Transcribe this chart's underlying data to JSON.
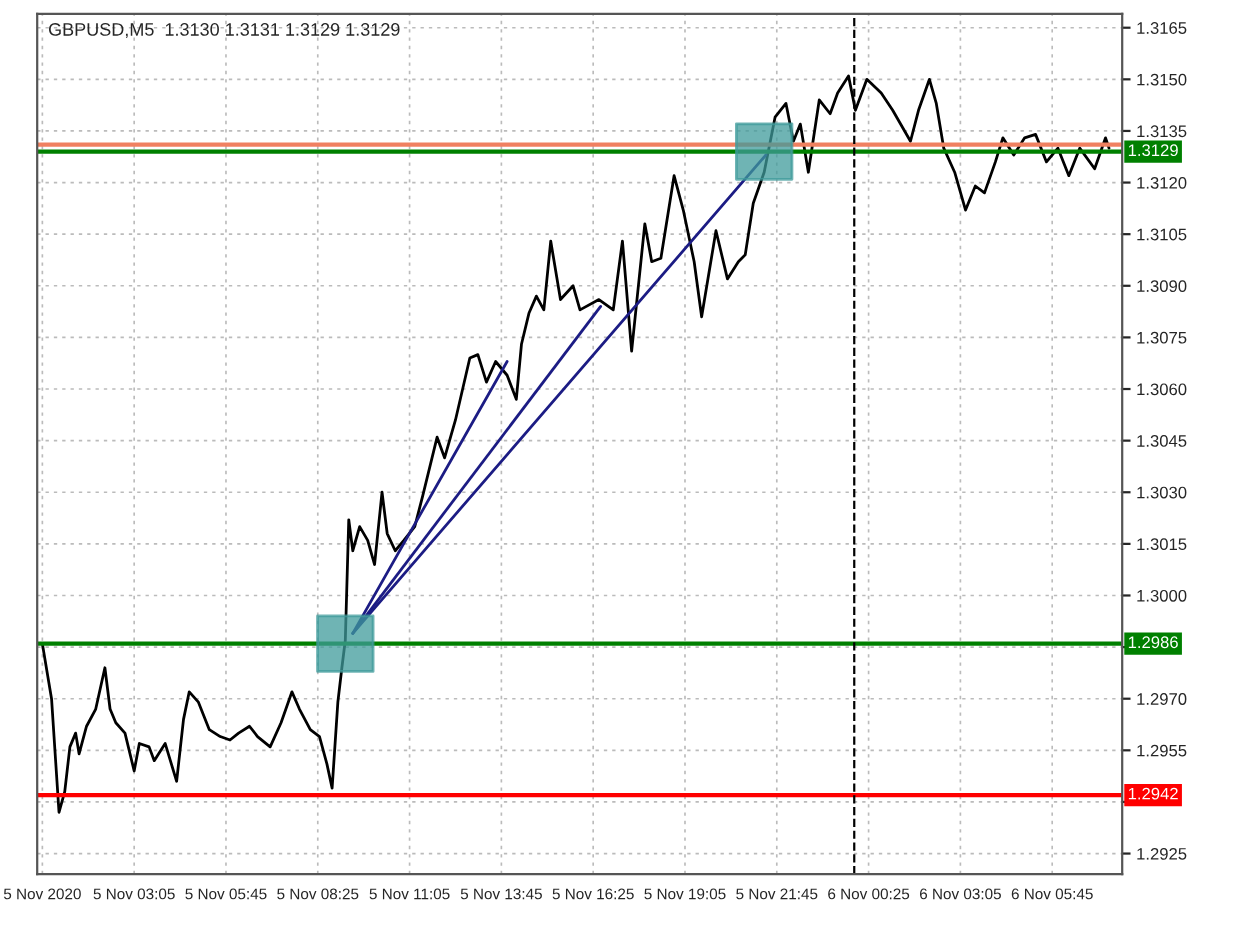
{
  "chart_data": {
    "type": "line",
    "title": "GBPUSD,M5  1.3130 1.3131 1.3129 1.3129",
    "xlim": [
      "2020-11-05T00:16",
      "2020-11-06T07:47"
    ],
    "xticks": [
      {
        "value": "2020-11-05T00:25",
        "label": "5 Nov 2020"
      },
      {
        "value": "2020-11-05T03:05",
        "label": "5 Nov 03:05"
      },
      {
        "value": "2020-11-05T05:45",
        "label": "5 Nov 05:45"
      },
      {
        "value": "2020-11-05T08:25",
        "label": "5 Nov 08:25"
      },
      {
        "value": "2020-11-05T11:05",
        "label": "5 Nov 11:05"
      },
      {
        "value": "2020-11-05T13:45",
        "label": "5 Nov 13:45"
      },
      {
        "value": "2020-11-05T16:25",
        "label": "5 Nov 16:25"
      },
      {
        "value": "2020-11-05T19:05",
        "label": "5 Nov 19:05"
      },
      {
        "value": "2020-11-05T21:45",
        "label": "5 Nov 21:45"
      },
      {
        "value": "2020-11-06T00:25",
        "label": "6 Nov 00:25"
      },
      {
        "value": "2020-11-06T03:05",
        "label": "6 Nov 03:05"
      },
      {
        "value": "2020-11-06T05:45",
        "label": "6 Nov 05:45"
      }
    ],
    "ylim": [
      1.2919,
      1.3169
    ],
    "yticks": [
      {
        "value": 1.2925,
        "label": "1.2925"
      },
      {
        "value": 1.294,
        "label": null
      },
      {
        "value": 1.2955,
        "label": "1.2955"
      },
      {
        "value": 1.297,
        "label": "1.2970"
      },
      {
        "value": 1.2985,
        "label": null
      },
      {
        "value": 1.3,
        "label": "1.3000"
      },
      {
        "value": 1.3015,
        "label": "1.3015"
      },
      {
        "value": 1.303,
        "label": "1.3030"
      },
      {
        "value": 1.3045,
        "label": "1.3045"
      },
      {
        "value": 1.306,
        "label": "1.3060"
      },
      {
        "value": 1.3075,
        "label": "1.3075"
      },
      {
        "value": 1.309,
        "label": "1.3090"
      },
      {
        "value": 1.3105,
        "label": "1.3105"
      },
      {
        "value": 1.312,
        "label": "1.3120"
      },
      {
        "value": 1.3135,
        "label": "1.3135"
      },
      {
        "value": 1.315,
        "label": "1.3150"
      },
      {
        "value": 1.3165,
        "label": "1.3165"
      }
    ],
    "grid": true,
    "legend": false,
    "line_style": "solid",
    "marker": "none",
    "series": [
      {
        "color": "#000000",
        "x": [
          "2020-11-05T00:25",
          "2020-11-05T00:41",
          "2020-11-05T00:54",
          "2020-11-05T01:04",
          "2020-11-05T01:13",
          "2020-11-05T01:23",
          "2020-11-05T01:29",
          "2020-11-05T01:42",
          "2020-11-05T01:58",
          "2020-11-05T02:14",
          "2020-11-05T02:23",
          "2020-11-05T02:33",
          "2020-11-05T02:49",
          "2020-11-05T03:05",
          "2020-11-05T03:14",
          "2020-11-05T03:31",
          "2020-11-05T03:40",
          "2020-11-05T03:59",
          "2020-11-05T04:19",
          "2020-11-05T04:31",
          "2020-11-05T04:41",
          "2020-11-05T04:57",
          "2020-11-05T05:16",
          "2020-11-05T05:35",
          "2020-11-05T05:52",
          "2020-11-05T06:07",
          "2020-11-05T06:26",
          "2020-11-05T06:40",
          "2020-11-05T07:02",
          "2020-11-05T07:21",
          "2020-11-05T07:40",
          "2020-11-05T07:53",
          "2020-11-05T08:12",
          "2020-11-05T08:28",
          "2020-11-05T08:41",
          "2020-11-05T08:50",
          "2020-11-05T09:00",
          "2020-11-05T09:07",
          "2020-11-05T09:13",
          "2020-11-05T09:19",
          "2020-11-05T09:26",
          "2020-11-05T09:38",
          "2020-11-05T09:52",
          "2020-11-05T10:04",
          "2020-11-05T10:17",
          "2020-11-05T10:26",
          "2020-11-05T10:40",
          "2020-11-05T10:55",
          "2020-11-05T11:14",
          "2020-11-05T11:28",
          "2020-11-05T11:53",
          "2020-11-05T12:06",
          "2020-11-05T12:25",
          "2020-11-05T12:50",
          "2020-11-05T13:04",
          "2020-11-05T13:19",
          "2020-11-05T13:35",
          "2020-11-05T13:55",
          "2020-11-05T14:11",
          "2020-11-05T14:20",
          "2020-11-05T14:33",
          "2020-11-05T14:46",
          "2020-11-05T14:59",
          "2020-11-05T15:11",
          "2020-11-05T15:28",
          "2020-11-05T15:50",
          "2020-11-05T16:02",
          "2020-11-05T16:35",
          "2020-11-05T17:00",
          "2020-11-05T17:16",
          "2020-11-05T17:32",
          "2020-11-05T17:55",
          "2020-11-05T18:07",
          "2020-11-05T18:23",
          "2020-11-05T18:46",
          "2020-11-05T19:02",
          "2020-11-05T19:21",
          "2020-11-05T19:34",
          "2020-11-05T19:59",
          "2020-11-05T20:19",
          "2020-11-05T20:38",
          "2020-11-05T20:50",
          "2020-11-05T21:04",
          "2020-11-05T21:23",
          "2020-11-05T21:42",
          "2020-11-05T22:01",
          "2020-11-05T22:14",
          "2020-11-05T22:26",
          "2020-11-05T22:40",
          "2020-11-05T22:59",
          "2020-11-05T23:18",
          "2020-11-05T23:31",
          "2020-11-05T23:50",
          "2020-11-06T00:02",
          "2020-11-06T00:22",
          "2020-11-06T00:47",
          "2020-11-06T01:07",
          "2020-11-06T01:38",
          "2020-11-06T01:52",
          "2020-11-06T02:11",
          "2020-11-06T02:23",
          "2020-11-06T02:36",
          "2020-11-06T02:55",
          "2020-11-06T03:14",
          "2020-11-06T03:31",
          "2020-11-06T03:47",
          "2020-11-06T04:06",
          "2020-11-06T04:19",
          "2020-11-06T04:38",
          "2020-11-06T04:57",
          "2020-11-06T05:16",
          "2020-11-06T05:35",
          "2020-11-06T05:55",
          "2020-11-06T06:14",
          "2020-11-06T06:33",
          "2020-11-06T06:59",
          "2020-11-06T07:18",
          "2020-11-06T07:24"
        ],
        "values": [
          1.2986,
          1.297,
          1.2937,
          1.2943,
          1.2956,
          1.296,
          1.2954,
          1.2962,
          1.2967,
          1.2979,
          1.2967,
          1.2963,
          1.296,
          1.2949,
          1.2957,
          1.2956,
          1.2952,
          1.2957,
          1.2946,
          1.2964,
          1.2972,
          1.2969,
          1.2961,
          1.2959,
          1.2958,
          1.296,
          1.2962,
          1.2959,
          1.2956,
          1.2963,
          1.2972,
          1.2967,
          1.2961,
          1.2959,
          1.2951,
          1.2944,
          1.2969,
          1.2979,
          1.2987,
          1.3022,
          1.3013,
          1.302,
          1.3016,
          1.3009,
          1.303,
          1.3018,
          1.3013,
          1.3016,
          1.302,
          1.3029,
          1.3046,
          1.304,
          1.3051,
          1.3069,
          1.307,
          1.3062,
          1.3068,
          1.3064,
          1.3057,
          1.3073,
          1.3082,
          1.3087,
          1.3083,
          1.3103,
          1.3086,
          1.309,
          1.3083,
          1.3086,
          1.3083,
          1.3103,
          1.3071,
          1.3108,
          1.3097,
          1.3098,
          1.3122,
          1.3112,
          1.3097,
          1.3081,
          1.3106,
          1.3092,
          1.3097,
          1.3099,
          1.3114,
          1.3123,
          1.3139,
          1.3143,
          1.3132,
          1.3137,
          1.3123,
          1.3144,
          1.314,
          1.3146,
          1.3151,
          1.3141,
          1.315,
          1.3146,
          1.3141,
          1.3132,
          1.3141,
          1.315,
          1.3143,
          1.313,
          1.3123,
          1.3112,
          1.3119,
          1.3117,
          1.3126,
          1.3133,
          1.3128,
          1.3133,
          1.3134,
          1.3126,
          1.313,
          1.3122,
          1.313,
          1.3124,
          1.3133,
          1.313
        ]
      },
      {
        "color": "#1c1c84",
        "x": [
          "2020-11-05T09:26",
          "2020-11-05T13:55"
        ],
        "values": [
          1.2989,
          1.3068
        ]
      },
      {
        "color": "#1c1c84",
        "x": [
          "2020-11-05T09:26",
          "2020-11-05T16:38"
        ],
        "values": [
          1.2989,
          1.3084
        ]
      },
      {
        "color": "#1c1c84",
        "x": [
          "2020-11-05T09:26",
          "2020-11-05T21:26"
        ],
        "values": [
          1.2989,
          1.3128
        ]
      },
      {
        "type": "scatter",
        "marker": "square",
        "color": "#3f9b9b",
        "x": [
          "2020-11-05T09:13",
          "2020-11-05T21:23"
        ],
        "values": [
          1.2986,
          1.3129
        ]
      }
    ],
    "ref_lines": [
      {
        "axis": "y",
        "value": 1.3131,
        "color": "#f08060",
        "line_style": "solid"
      },
      {
        "axis": "y",
        "value": 1.3129,
        "label": "1.3129",
        "color": "#008000",
        "line_style": "solid"
      },
      {
        "axis": "y",
        "value": 1.2986,
        "label": "1.2986",
        "color": "#008000",
        "line_style": "solid"
      },
      {
        "axis": "y",
        "value": 1.2942,
        "label": "1.2942",
        "color": "#ff0000",
        "line_style": "solid"
      },
      {
        "axis": "x",
        "value": "2020-11-06T00:00",
        "color": "#000000",
        "line_style": "dashed"
      }
    ]
  }
}
